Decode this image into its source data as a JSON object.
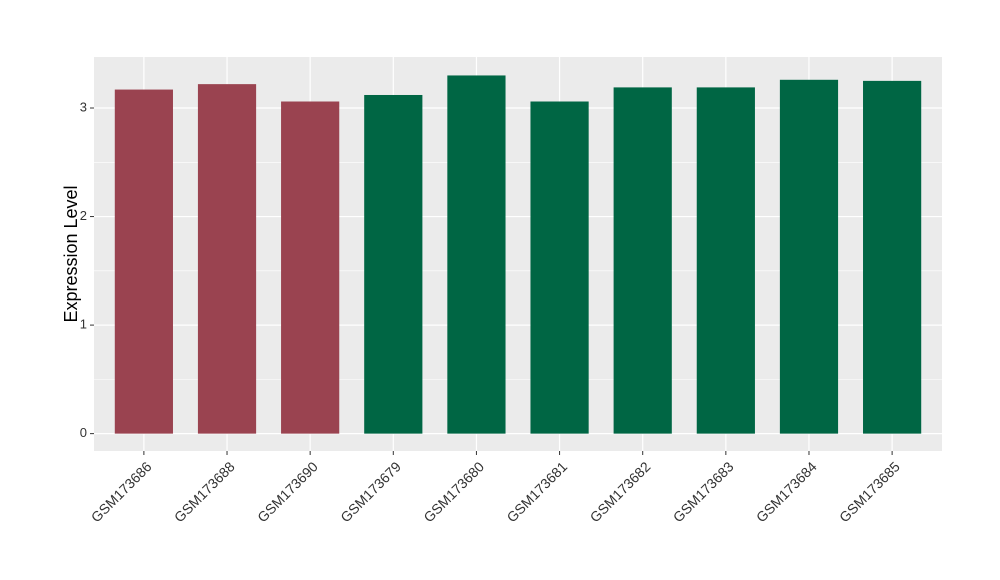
{
  "chart_data": {
    "type": "bar",
    "y_label": "Expression Level",
    "categories": [
      "GSM173686",
      "GSM173688",
      "GSM173690",
      "GSM173679",
      "GSM173680",
      "GSM173681",
      "GSM173682",
      "GSM173683",
      "GSM173684",
      "GSM173685"
    ],
    "values": [
      3.17,
      3.22,
      3.06,
      3.12,
      3.3,
      3.06,
      3.19,
      3.19,
      3.26,
      3.25
    ],
    "colors": [
      "#9a4350",
      "#9a4350",
      "#9a4350",
      "#006644",
      "#006644",
      "#006644",
      "#006644",
      "#006644",
      "#006644",
      "#006644"
    ],
    "ylim": [
      -0.16,
      3.47
    ],
    "yticks": [
      0,
      1,
      2,
      3
    ],
    "grid": true
  }
}
